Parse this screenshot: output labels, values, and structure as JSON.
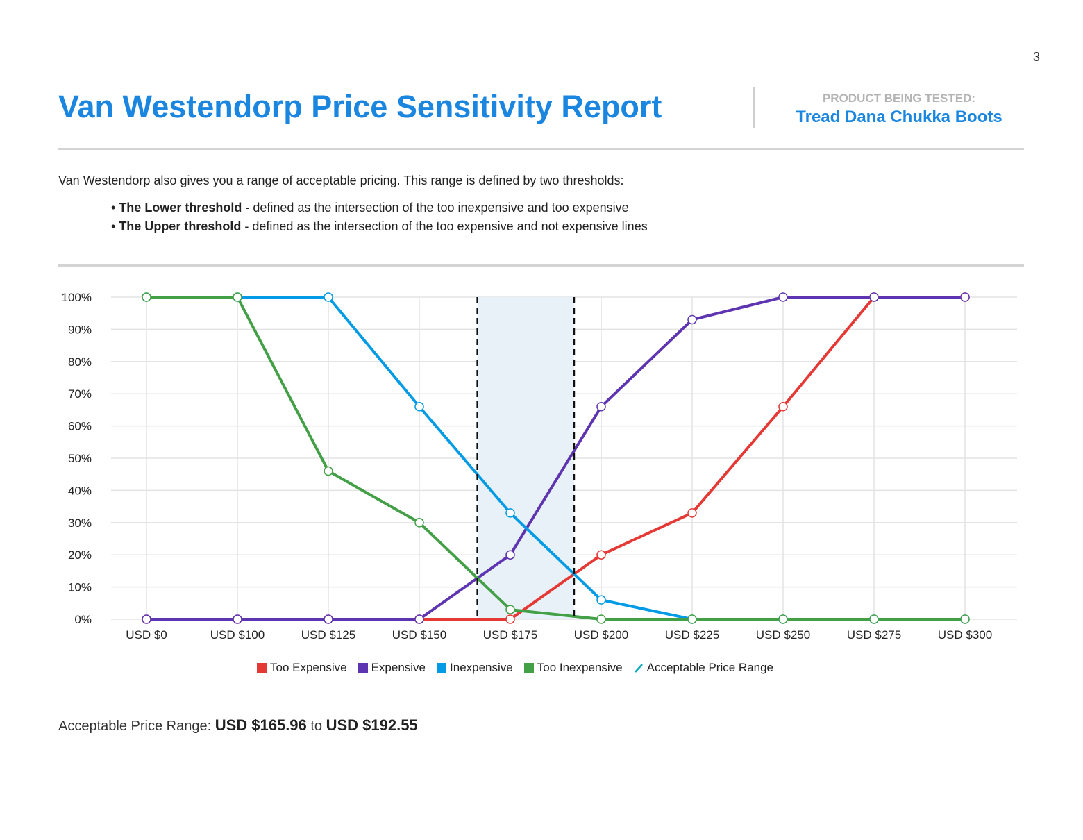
{
  "page_number": "3",
  "header": {
    "title": "Van Westendorp Price Sensitivity Report",
    "product_label": "PRODUCT BEING TESTED:",
    "product_name": "Tread Dana Chukka Boots"
  },
  "intro": {
    "text": "Van Westendorp also gives you a range of acceptable pricing. This range is defined by two thresholds:",
    "bullets": [
      {
        "bold": "The Lower threshold",
        "text": " - defined as the intersection of the too inexpensive and too expensive"
      },
      {
        "bold": "The Upper threshold",
        "text": " - defined as the intersection of the too expensive and not expensive lines"
      }
    ]
  },
  "chart_data": {
    "type": "line",
    "categories": [
      "USD $0",
      "USD $100",
      "USD $125",
      "USD $150",
      "USD $175",
      "USD $200",
      "USD $225",
      "USD $250",
      "USD $275",
      "USD $300"
    ],
    "category_values": [
      0,
      100,
      125,
      150,
      175,
      200,
      225,
      250,
      275,
      300
    ],
    "ylim": [
      0,
      100
    ],
    "yticks": [
      "0%",
      "10%",
      "20%",
      "30%",
      "40%",
      "50%",
      "60%",
      "70%",
      "80%",
      "90%",
      "100%"
    ],
    "grid": true,
    "legend_position": "bottom",
    "series": [
      {
        "name": "Too Expensive",
        "color": "#e53935",
        "values": [
          0,
          0,
          0,
          0,
          0,
          20,
          33,
          66,
          100,
          100
        ]
      },
      {
        "name": "Expensive",
        "color": "#5e35b1",
        "values": [
          0,
          0,
          0,
          0,
          20,
          66,
          93,
          100,
          100,
          100
        ]
      },
      {
        "name": "Inexpensive",
        "color": "#039be5",
        "values": [
          100,
          100,
          100,
          66,
          33,
          6,
          0,
          0,
          0,
          0
        ]
      },
      {
        "name": "Too Inexpensive",
        "color": "#43a047",
        "values": [
          100,
          100,
          46,
          30,
          3,
          0,
          0,
          0,
          0,
          0
        ]
      }
    ],
    "acceptable_range": {
      "name": "Acceptable Price Range",
      "color": "#00acc1",
      "lower": 165.96,
      "upper": 192.55,
      "fill": "#e8f0f8"
    }
  },
  "summary": {
    "label": "Acceptable Price Range: ",
    "lower": "USD $165.96",
    "to": " to ",
    "upper": "USD $192.55"
  }
}
